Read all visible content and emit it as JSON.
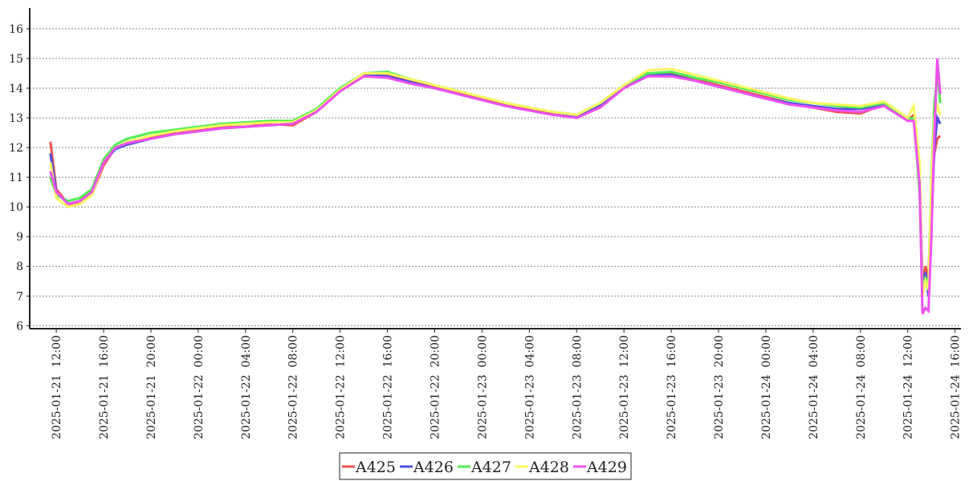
{
  "chart_data": {
    "type": "line",
    "x": [
      "2025-01-21 11:30",
      "2025-01-21 12:00",
      "2025-01-21 13:00",
      "2025-01-21 14:00",
      "2025-01-21 15:00",
      "2025-01-21 16:00",
      "2025-01-21 17:00",
      "2025-01-21 18:00",
      "2025-01-21 20:00",
      "2025-01-21 22:00",
      "2025-01-22 00:00",
      "2025-01-22 02:00",
      "2025-01-22 04:00",
      "2025-01-22 06:00",
      "2025-01-22 08:00",
      "2025-01-22 10:00",
      "2025-01-22 12:00",
      "2025-01-22 14:00",
      "2025-01-22 16:00",
      "2025-01-22 18:00",
      "2025-01-22 20:00",
      "2025-01-22 22:00",
      "2025-01-23 00:00",
      "2025-01-23 02:00",
      "2025-01-23 04:00",
      "2025-01-23 06:00",
      "2025-01-23 08:00",
      "2025-01-23 10:00",
      "2025-01-23 12:00",
      "2025-01-23 14:00",
      "2025-01-23 16:00",
      "2025-01-23 18:00",
      "2025-01-23 20:00",
      "2025-01-23 22:00",
      "2025-01-24 00:00",
      "2025-01-24 02:00",
      "2025-01-24 04:00",
      "2025-01-24 06:00",
      "2025-01-24 08:00",
      "2025-01-24 10:00",
      "2025-01-24 12:00",
      "2025-01-24 12:30",
      "2025-01-24 13:00",
      "2025-01-24 13:15",
      "2025-01-24 13:30",
      "2025-01-24 13:45",
      "2025-01-24 14:00",
      "2025-01-24 14:15",
      "2025-01-24 14:30",
      "2025-01-24 14:45"
    ],
    "series": [
      {
        "name": "A425",
        "color": "#f05050",
        "values": [
          12.2,
          10.6,
          10.1,
          10.1,
          10.4,
          11.4,
          12.0,
          12.15,
          12.35,
          12.5,
          12.6,
          12.7,
          12.7,
          12.8,
          12.75,
          13.2,
          13.9,
          14.4,
          14.45,
          14.25,
          14.05,
          13.85,
          13.65,
          13.45,
          13.3,
          13.15,
          13.0,
          13.4,
          14.05,
          14.5,
          14.5,
          14.3,
          14.1,
          13.9,
          13.7,
          13.5,
          13.35,
          13.2,
          13.15,
          13.45,
          12.9,
          13.1,
          11.0,
          7.5,
          8.0,
          7.6,
          10.5,
          11.8,
          12.3,
          12.4
        ]
      },
      {
        "name": "A426",
        "color": "#5050e0",
        "values": [
          11.8,
          10.5,
          10.1,
          10.2,
          10.5,
          11.5,
          11.95,
          12.1,
          12.3,
          12.45,
          12.55,
          12.65,
          12.7,
          12.75,
          12.8,
          13.25,
          13.95,
          14.45,
          14.4,
          14.2,
          14.0,
          13.8,
          13.6,
          13.4,
          13.25,
          13.1,
          13.05,
          13.45,
          14.1,
          14.45,
          14.45,
          14.25,
          14.05,
          13.85,
          13.65,
          13.5,
          13.4,
          13.3,
          13.3,
          13.45,
          12.95,
          13.0,
          11.2,
          7.4,
          7.8,
          7.0,
          9.5,
          12.0,
          13.0,
          12.8
        ]
      },
      {
        "name": "A427",
        "color": "#50f050",
        "values": [
          11.0,
          10.4,
          10.2,
          10.3,
          10.6,
          11.6,
          12.1,
          12.3,
          12.5,
          12.6,
          12.7,
          12.8,
          12.85,
          12.9,
          12.9,
          13.3,
          14.0,
          14.5,
          14.55,
          14.3,
          14.1,
          13.9,
          13.7,
          13.5,
          13.35,
          13.2,
          13.1,
          13.5,
          14.1,
          14.5,
          14.55,
          14.35,
          14.2,
          14.0,
          13.8,
          13.6,
          13.5,
          13.4,
          13.35,
          13.5,
          12.95,
          13.0,
          10.5,
          7.2,
          7.6,
          7.4,
          11.0,
          13.5,
          14.5,
          13.5
        ]
      },
      {
        "name": "A428",
        "color": "#f8f860",
        "values": [
          11.5,
          10.3,
          10.0,
          10.1,
          10.4,
          11.5,
          12.0,
          12.2,
          12.4,
          12.55,
          12.65,
          12.75,
          12.8,
          12.85,
          12.85,
          13.25,
          13.95,
          14.5,
          14.5,
          14.3,
          14.1,
          13.9,
          13.7,
          13.5,
          13.35,
          13.2,
          13.1,
          13.5,
          14.1,
          14.6,
          14.65,
          14.45,
          14.25,
          14.05,
          13.85,
          13.65,
          13.5,
          13.45,
          13.4,
          13.55,
          13.0,
          13.4,
          11.5,
          7.0,
          7.5,
          7.2,
          10.8,
          13.0,
          13.4,
          13.1
        ]
      },
      {
        "name": "A429",
        "color": "#f050f0",
        "values": [
          11.2,
          10.5,
          10.1,
          10.2,
          10.5,
          11.5,
          12.0,
          12.15,
          12.3,
          12.45,
          12.55,
          12.65,
          12.7,
          12.75,
          12.8,
          13.2,
          13.9,
          14.4,
          14.35,
          14.15,
          14.0,
          13.8,
          13.6,
          13.4,
          13.25,
          13.1,
          13.0,
          13.35,
          14.0,
          14.4,
          14.4,
          14.25,
          14.05,
          13.85,
          13.65,
          13.45,
          13.35,
          13.25,
          13.2,
          13.4,
          12.9,
          12.9,
          10.8,
          6.4,
          6.6,
          6.5,
          9.0,
          12.5,
          15.0,
          13.8
        ]
      }
    ],
    "xlim": [
      "2025-01-21 09:45",
      "2025-01-24 16:30"
    ],
    "xticks": [
      "2025-01-21  12:00",
      "2025-01-21  16:00",
      "2025-01-21  20:00",
      "2025-01-22  00:00",
      "2025-01-22  04:00",
      "2025-01-22  08:00",
      "2025-01-22  12:00",
      "2025-01-22  16:00",
      "2025-01-22  20:00",
      "2025-01-23  00:00",
      "2025-01-23  04:00",
      "2025-01-23  08:00",
      "2025-01-23  12:00",
      "2025-01-23  16:00",
      "2025-01-23  20:00",
      "2025-01-24  00:00",
      "2025-01-24  04:00",
      "2025-01-24  08:00",
      "2025-01-24  12:00",
      "2025-01-24  16:00"
    ],
    "ylim": [
      5.9,
      16.7
    ],
    "yticks": [
      6,
      7,
      8,
      9,
      10,
      11,
      12,
      13,
      14,
      15,
      16
    ],
    "grid": true,
    "legend": "bottom"
  }
}
